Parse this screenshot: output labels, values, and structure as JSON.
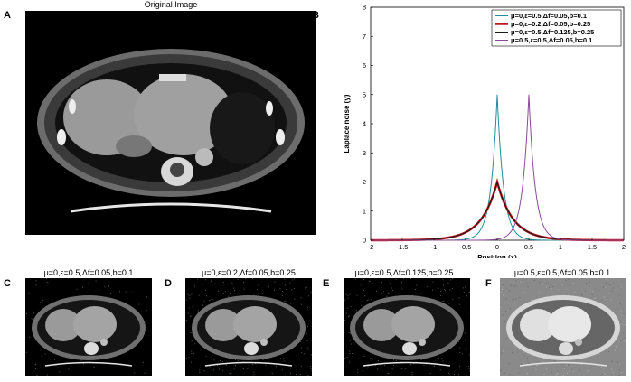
{
  "panel_a": {
    "letter": "A",
    "title": "Original Image"
  },
  "panel_b": {
    "letter": "B"
  },
  "small_panels": [
    {
      "letter": "C",
      "title": "μ=0,ε=0.5,Δf=0.05,b=0.1"
    },
    {
      "letter": "D",
      "title": "μ=0,ε=0.2,Δf=0.05,b=0.25"
    },
    {
      "letter": "E",
      "title": "μ=0,ε=0.5,Δf=0.125,b=0.25"
    },
    {
      "letter": "F",
      "title": "μ=0.5,ε=0.5,Δf=0.05,b=0.1"
    }
  ],
  "chart_data": {
    "type": "line",
    "xlabel": "Position (x)",
    "ylabel": "Laplace noise (y)",
    "xlim": [
      -2,
      2
    ],
    "ylim": [
      0,
      8
    ],
    "xticks": [
      "-2",
      "-1.5",
      "-1",
      "-0.5",
      "0",
      "0.5",
      "1",
      "1.5",
      "2"
    ],
    "yticks": [
      "0",
      "1",
      "2",
      "3",
      "4",
      "5",
      "6",
      "7",
      "8"
    ],
    "grid": false,
    "legend_position": "top-right",
    "series": [
      {
        "name": "μ=0,ε=0.5,Δf=0.05,b=0.1",
        "mu": 0,
        "b": 0.1,
        "peak": 5,
        "color": "#1f8f9a",
        "width": 1
      },
      {
        "name": "μ=0,ε=0.2,Δf=0.05,b=0.25",
        "mu": 0,
        "b": 0.25,
        "peak": 2,
        "color": "#c0181e",
        "width": 2.5
      },
      {
        "name": "μ=0,ε=0.5,Δf=0.125,b=0.25",
        "mu": 0,
        "b": 0.25,
        "peak": 2,
        "color": "#1a1a1a",
        "width": 1
      },
      {
        "name": "μ=0.5,ε=0.5,Δf=0.05,b=0.1",
        "mu": 0.5,
        "b": 0.1,
        "peak": 5,
        "color": "#8a4a9a",
        "width": 1
      }
    ]
  }
}
